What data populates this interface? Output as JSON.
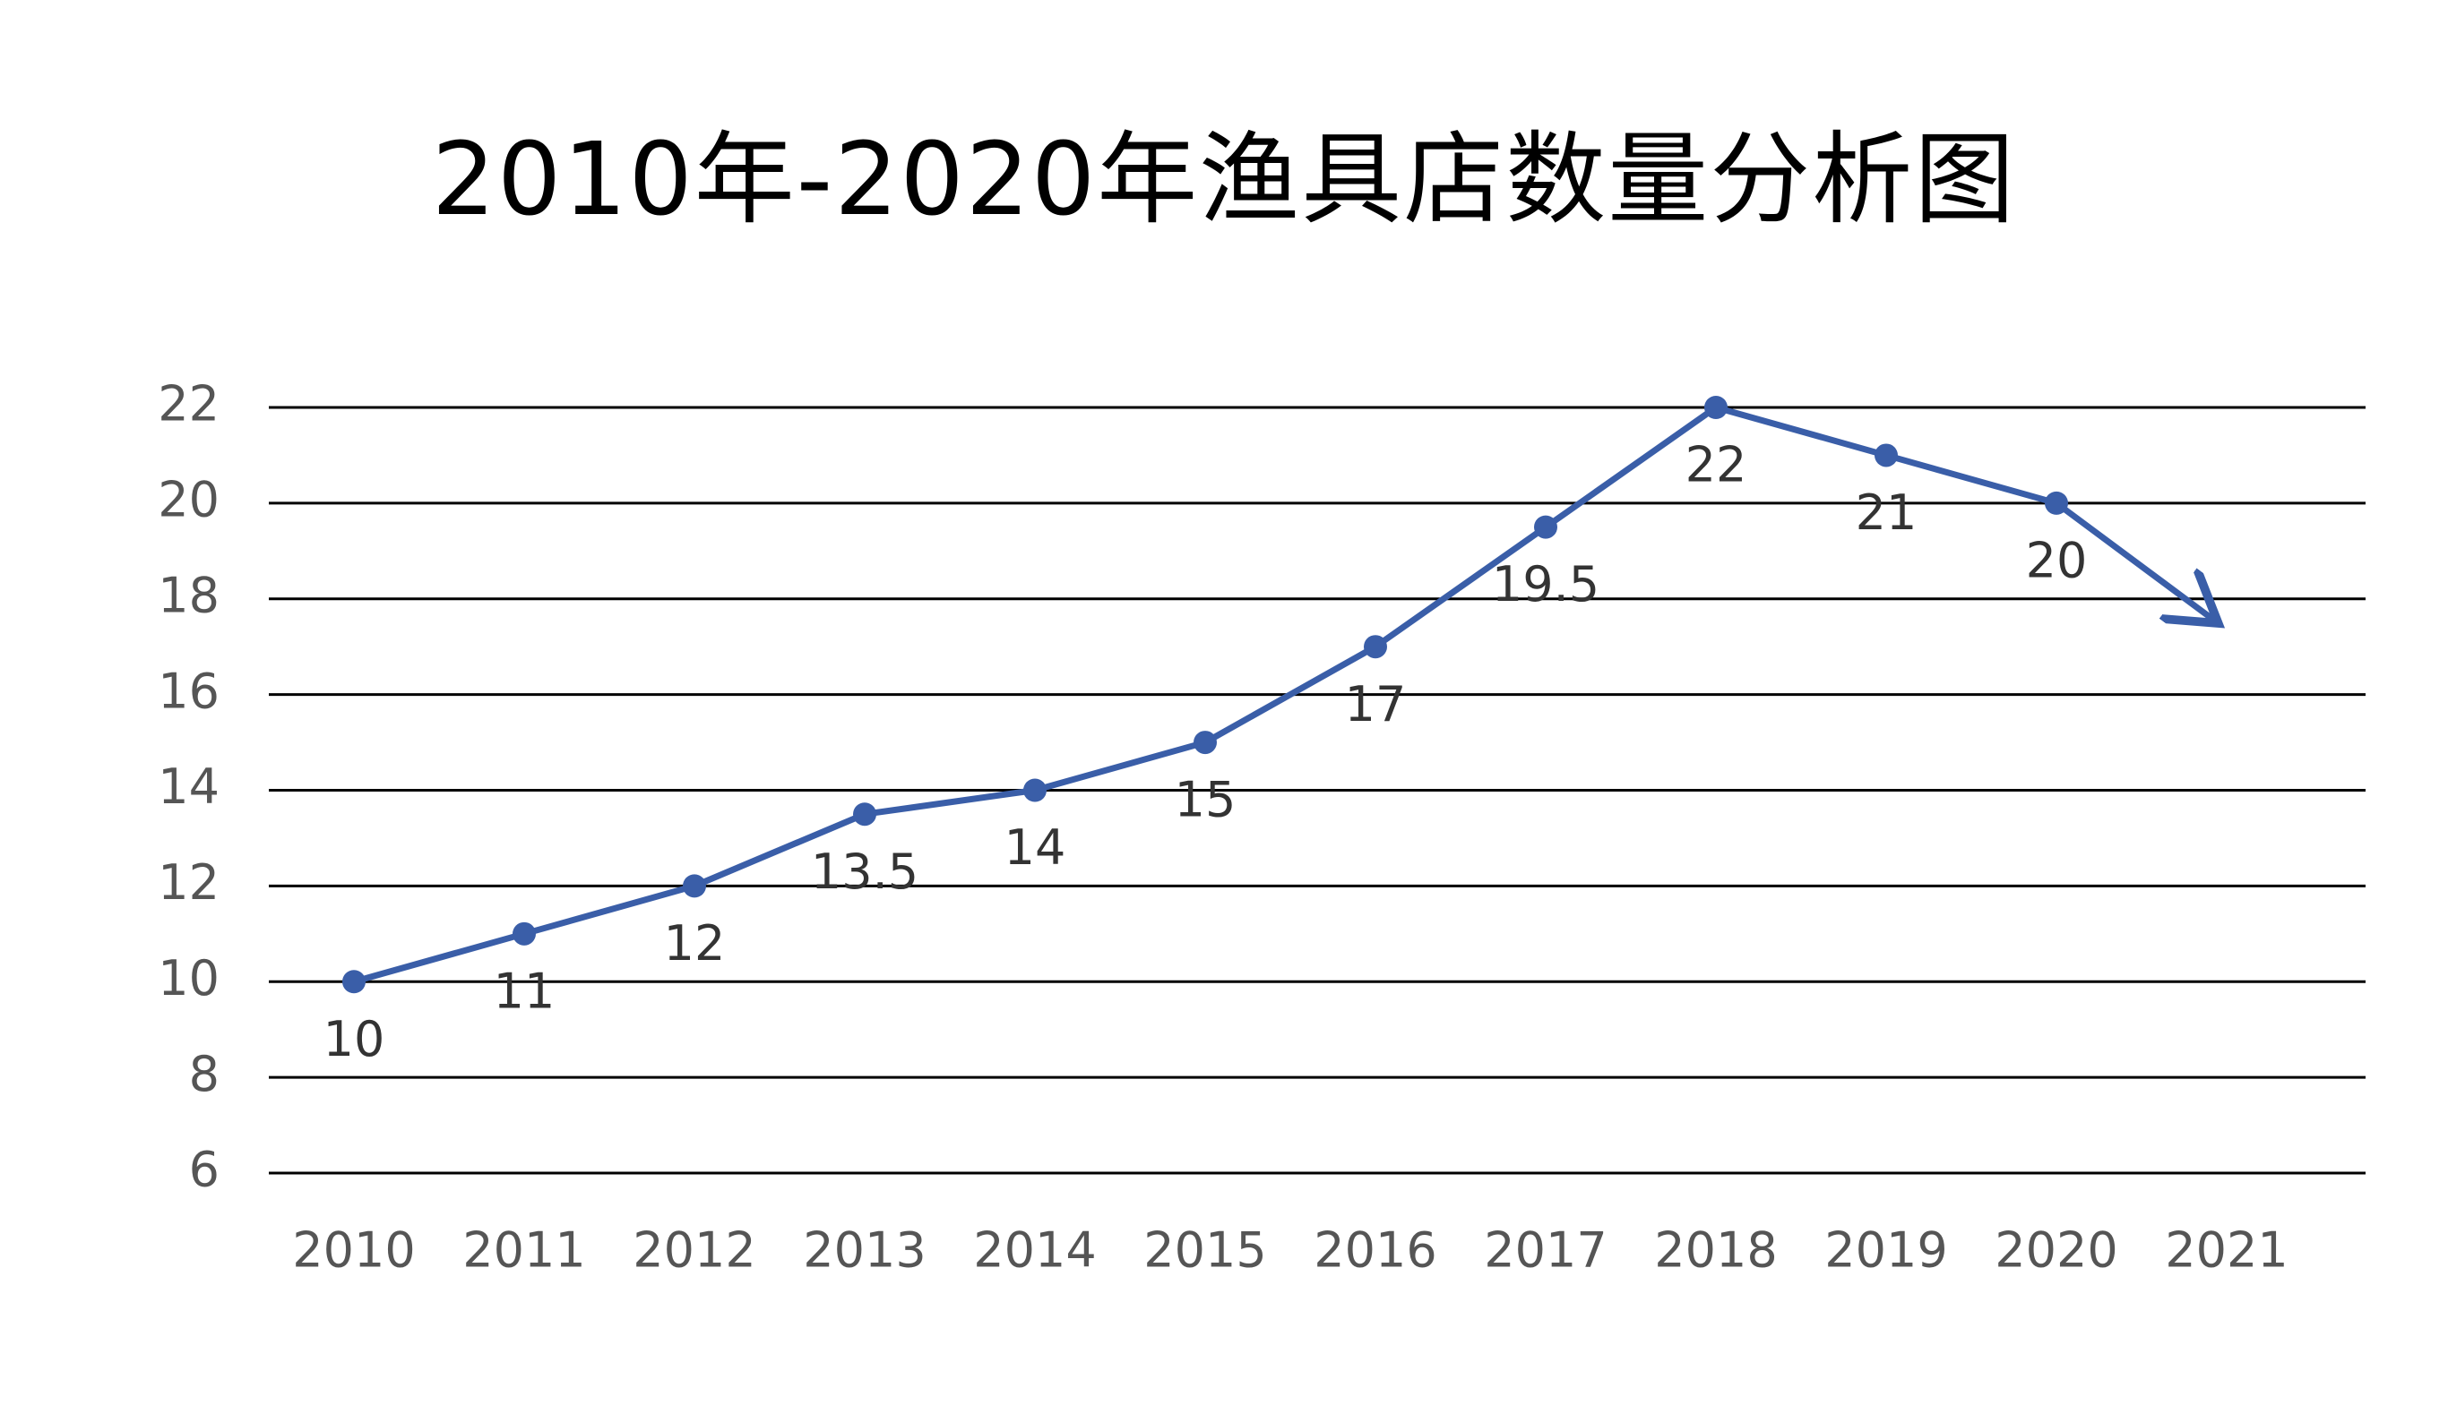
{
  "chart_data": {
    "type": "line",
    "title": "2010年-2020年渔具店数量分析图",
    "xlabel": "",
    "ylabel": "",
    "x_categories": [
      "2010",
      "2011",
      "2012",
      "2013",
      "2014",
      "2015",
      "2016",
      "2017",
      "2018",
      "2019",
      "2020",
      "2021"
    ],
    "y_ticks": [
      "6",
      "8",
      "10",
      "12",
      "14",
      "16",
      "18",
      "20",
      "22"
    ],
    "ylim": [
      6,
      22
    ],
    "grid": true,
    "series": [
      {
        "values": [
          10,
          11,
          12,
          13.5,
          14,
          15,
          17,
          19.5,
          22,
          21,
          20
        ],
        "labels": [
          "10",
          "11",
          "12",
          "13.5",
          "14",
          "15",
          "17",
          "19.5",
          "22",
          "21",
          "20"
        ],
        "color": "#3a5ea8",
        "trend_arrow": "down"
      }
    ]
  }
}
